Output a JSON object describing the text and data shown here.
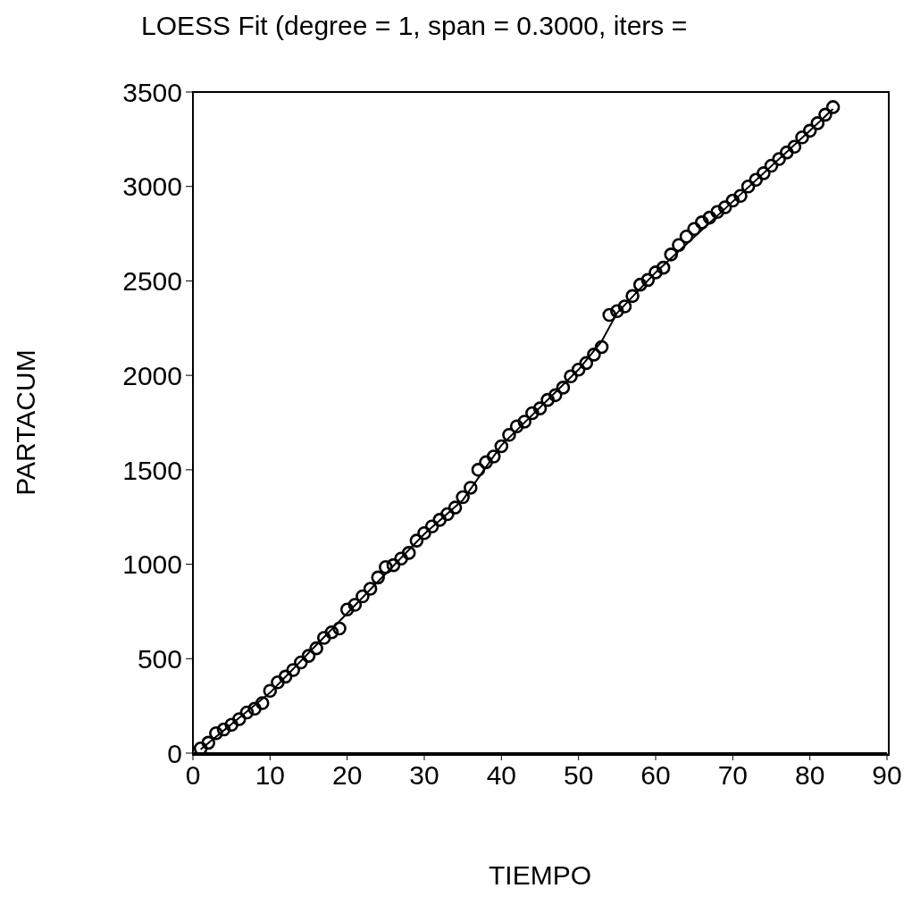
{
  "chart_data": {
    "type": "scatter",
    "title": "LOESS Fit (degree = 1, span = 0.3000, iters =",
    "xlabel": "TIEMPO",
    "ylabel": "PARTACUM",
    "xlim": [
      0,
      90
    ],
    "xticks": [
      0,
      10,
      20,
      30,
      40,
      50,
      60,
      70,
      80,
      90
    ],
    "ylim": [
      0,
      3500
    ],
    "yticks": [
      0,
      500,
      1000,
      1500,
      2000,
      2500,
      3000,
      3500
    ],
    "grid": false,
    "legend": false,
    "marker": "circle",
    "series": [
      {
        "color": "#000000",
        "x": [
          1,
          2,
          3,
          4,
          5,
          6,
          7,
          8,
          9,
          10,
          11,
          12,
          13,
          14,
          15,
          16,
          17,
          18,
          19,
          20,
          21,
          22,
          23,
          24,
          25,
          26,
          27,
          28,
          29,
          30,
          31,
          32,
          33,
          34,
          35,
          36,
          37,
          38,
          39,
          40,
          41,
          42,
          43,
          44,
          45,
          46,
          47,
          48,
          49,
          50,
          51,
          52,
          53,
          54,
          55,
          56,
          57,
          58,
          59,
          60,
          61,
          62,
          63,
          64,
          65,
          66,
          67,
          68,
          69,
          70,
          71,
          72,
          73,
          74,
          75,
          76,
          77,
          78,
          79,
          80,
          81,
          82,
          83
        ],
        "values": [
          25,
          55,
          105,
          125,
          150,
          180,
          215,
          235,
          265,
          330,
          375,
          405,
          440,
          480,
          515,
          555,
          610,
          640,
          660,
          760,
          785,
          830,
          870,
          930,
          985,
          995,
          1030,
          1060,
          1125,
          1165,
          1200,
          1235,
          1265,
          1300,
          1355,
          1405,
          1500,
          1540,
          1570,
          1625,
          1685,
          1730,
          1755,
          1800,
          1825,
          1870,
          1895,
          1935,
          1995,
          2030,
          2065,
          2110,
          2150,
          2320,
          2340,
          2365,
          2420,
          2480,
          2505,
          2545,
          2570,
          2640,
          2690,
          2735,
          2775,
          2810,
          2835,
          2865,
          2890,
          2925,
          2950,
          3000,
          3035,
          3070,
          3110,
          3145,
          3180,
          3210,
          3260,
          3295,
          3335,
          3380,
          3420
        ]
      },
      {
        "type": "line",
        "color": "#000000",
        "marker": "none",
        "line_style": "solid",
        "x": [
          1,
          10,
          20,
          30,
          35,
          40,
          50,
          53,
          55,
          60,
          70,
          80,
          83
        ],
        "values": [
          20,
          320,
          740,
          1160,
          1340,
          1630,
          2030,
          2180,
          2330,
          2545,
          2920,
          3295,
          3410
        ]
      }
    ]
  }
}
